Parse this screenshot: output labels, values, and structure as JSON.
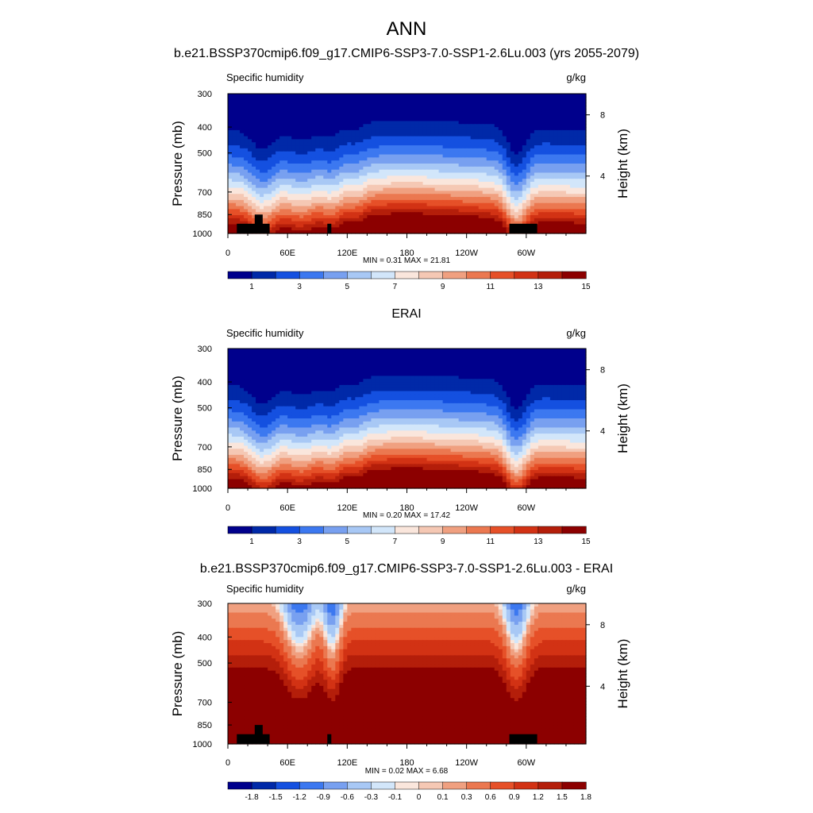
{
  "page_title": "ANN",
  "chart_data": [
    {
      "type": "heatmap",
      "title": "b.e21.BSSP370cmip6.f09_g17.CMIP6-SSP3-7.0-SSP1-2.6Lu.003 (yrs 2055-2079)",
      "variable": "Specific humidity",
      "units": "g/kg",
      "ylabel": "Pressure (mb)",
      "y2label": "Height (km)",
      "y_ticks": [
        "300",
        "400",
        "500",
        "700",
        "850",
        "1000"
      ],
      "y2_ticks": [
        "8",
        "4"
      ],
      "x_ticks": [
        "0",
        "60E",
        "120E",
        "180",
        "120W",
        "60W"
      ],
      "x_range": [
        0,
        360
      ],
      "y_range": [
        300,
        1000
      ],
      "y_scale": "log",
      "stats": "MIN =   0.31  MAX =  21.81",
      "min": 0.31,
      "max": 21.81,
      "colorbar_labels": [
        "1",
        "3",
        "5",
        "7",
        "9",
        "11",
        "13",
        "15"
      ],
      "colorbar_colors": [
        "#00008c",
        "#0029a8",
        "#1450e0",
        "#3c78f0",
        "#78a0f0",
        "#a8c8f5",
        "#d2e6fa",
        "#fae6dc",
        "#f5c8b4",
        "#f0a080",
        "#eb7850",
        "#e65028",
        "#d23214",
        "#b41e0a",
        "#8c0000"
      ],
      "regime": "full"
    },
    {
      "type": "heatmap",
      "title": "ERAI",
      "variable": "Specific humidity",
      "units": "g/kg",
      "ylabel": "Pressure (mb)",
      "y2label": "Height (km)",
      "y_ticks": [
        "300",
        "400",
        "500",
        "700",
        "850",
        "1000"
      ],
      "y2_ticks": [
        "8",
        "4"
      ],
      "x_ticks": [
        "0",
        "60E",
        "120E",
        "180",
        "120W",
        "60W"
      ],
      "x_range": [
        0,
        360
      ],
      "y_range": [
        300,
        1000
      ],
      "y_scale": "log",
      "stats": "MIN =   0.20  MAX =  17.42",
      "min": 0.2,
      "max": 17.42,
      "colorbar_labels": [
        "1",
        "3",
        "5",
        "7",
        "9",
        "11",
        "13",
        "15"
      ],
      "colorbar_colors": [
        "#00008c",
        "#0029a8",
        "#1450e0",
        "#3c78f0",
        "#78a0f0",
        "#a8c8f5",
        "#d2e6fa",
        "#fae6dc",
        "#f5c8b4",
        "#f0a080",
        "#eb7850",
        "#e65028",
        "#d23214",
        "#b41e0a",
        "#8c0000"
      ],
      "regime": "full"
    },
    {
      "type": "heatmap",
      "title": "b.e21.BSSP370cmip6.f09_g17.CMIP6-SSP3-7.0-SSP1-2.6Lu.003 - ERAI",
      "variable": "Specific humidity",
      "units": "g/kg",
      "ylabel": "Pressure (mb)",
      "y2label": "Height (km)",
      "y_ticks": [
        "300",
        "400",
        "500",
        "700",
        "850",
        "1000"
      ],
      "y2_ticks": [
        "8",
        "4"
      ],
      "x_ticks": [
        "0",
        "60E",
        "120E",
        "180",
        "120W",
        "60W"
      ],
      "x_range": [
        0,
        360
      ],
      "y_range": [
        300,
        1000
      ],
      "y_scale": "log",
      "stats": "MIN =   0.02  MAX =   6.68",
      "min": 0.02,
      "max": 6.68,
      "colorbar_labels": [
        "-1.8",
        "-1.5",
        "-1.2",
        "-0.9",
        "-0.6",
        "-0.3",
        "-0.1",
        "0",
        "0.1",
        "0.3",
        "0.6",
        "0.9",
        "1.2",
        "1.5",
        "1.8"
      ],
      "colorbar_colors": [
        "#00008c",
        "#0029a8",
        "#1450e0",
        "#3c78f0",
        "#78a0f0",
        "#a8c8f5",
        "#d2e6fa",
        "#fae6dc",
        "#f5c8b4",
        "#f0a080",
        "#eb7850",
        "#e65028",
        "#d23214",
        "#b41e0a",
        "#8c0000"
      ],
      "regime": "diff"
    }
  ]
}
